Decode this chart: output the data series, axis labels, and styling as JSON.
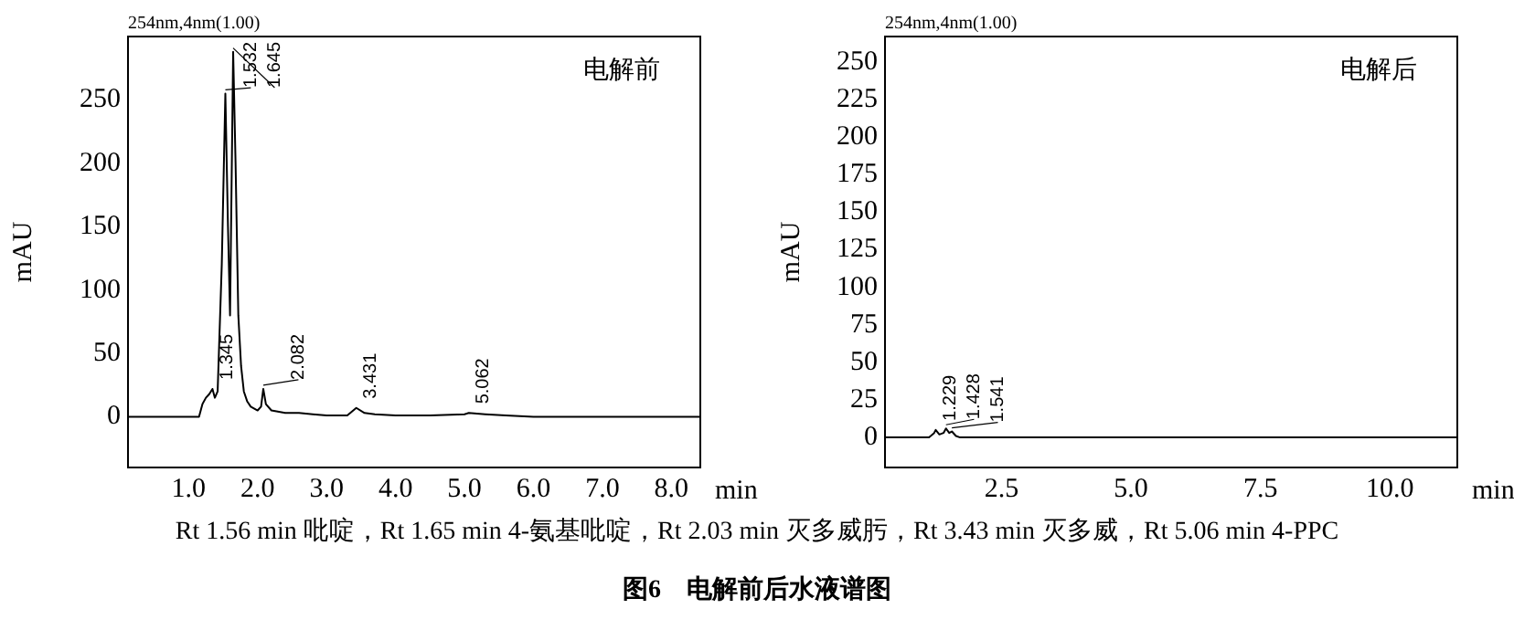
{
  "chart_data": [
    {
      "type": "line",
      "title": "电解前",
      "subtitle": "254nm,4nm(1.00)",
      "xlabel": "min",
      "ylabel": "mAU",
      "xlim": [
        0.12,
        8.42
      ],
      "ylim": [
        -40,
        300
      ],
      "xticks": [
        {
          "value": 1,
          "label": "1.0"
        },
        {
          "value": 2,
          "label": "2.0"
        },
        {
          "value": 3,
          "label": "3.0"
        },
        {
          "value": 4,
          "label": "4.0"
        },
        {
          "value": 5,
          "label": "5.0"
        },
        {
          "value": 6,
          "label": "6.0"
        },
        {
          "value": 7,
          "label": "7.0"
        },
        {
          "value": 8,
          "label": "8.0"
        }
      ],
      "yticks": [
        0,
        50,
        100,
        150,
        200,
        250
      ],
      "series": [
        {
          "color": "#000000",
          "x": [
            0.12,
            1.0,
            1.15,
            1.2,
            1.25,
            1.3,
            1.345,
            1.38,
            1.42,
            1.48,
            1.532,
            1.57,
            1.6,
            1.645,
            1.68,
            1.72,
            1.76,
            1.8,
            1.85,
            1.9,
            2.0,
            2.05,
            2.082,
            2.12,
            2.2,
            2.4,
            2.6,
            2.8,
            3.0,
            3.3,
            3.431,
            3.55,
            3.7,
            4.0,
            4.5,
            5.0,
            5.062,
            5.3,
            5.6,
            6.0,
            8.42
          ],
          "values": [
            0,
            0,
            0,
            10,
            15,
            18,
            22,
            15,
            20,
            120,
            255,
            150,
            80,
            288,
            200,
            80,
            40,
            20,
            12,
            8,
            5,
            8,
            22,
            10,
            5,
            3,
            3,
            2,
            1,
            1,
            7,
            3,
            2,
            1,
            1,
            2,
            3,
            2,
            1,
            0,
            0
          ]
        }
      ],
      "annotations": [
        {
          "text": "1.345",
          "x": 1.345,
          "y": 22
        },
        {
          "text": "1.532",
          "x": 1.532,
          "y": 255
        },
        {
          "text": "1.645",
          "x": 1.645,
          "y": 288
        },
        {
          "text": "2.082",
          "x": 2.082,
          "y": 22
        },
        {
          "text": "3.431",
          "x": 3.431,
          "y": 7
        },
        {
          "text": "5.062",
          "x": 5.062,
          "y": 3
        },
        "Rt 1.56 min 吡啶，Rt 1.65 min 4-氨基吡啶，Rt 2.03 min 灭多威肟，Rt 3.43 min 灭多威，Rt 5.06 min 4-PPC",
        "图6　电解前后水液谱图"
      ]
    },
    {
      "type": "line",
      "title": "电解后",
      "subtitle": "254nm,4nm(1.00)",
      "xlabel": "min",
      "ylabel": "mAU",
      "xlim": [
        0.25,
        11.3
      ],
      "ylim": [
        -20,
        267
      ],
      "xticks": [
        2.5,
        {
          "value": 5,
          "label": "5.0"
        },
        7.5,
        {
          "value": 10,
          "label": "10.0"
        }
      ],
      "yticks": [
        0,
        25,
        50,
        75,
        100,
        125,
        150,
        175,
        200,
        225,
        250
      ],
      "series": [
        {
          "color": "#000000",
          "x": [
            0.25,
            1.1,
            1.2,
            1.229,
            1.3,
            1.38,
            1.428,
            1.49,
            1.541,
            1.62,
            1.7,
            11.3
          ],
          "values": [
            0,
            0,
            3,
            5,
            2,
            3,
            6,
            3,
            4,
            1,
            0,
            0
          ]
        }
      ],
      "annotations": [
        {
          "text": "1.229",
          "x": 1.229,
          "y": 5
        },
        {
          "text": "1.428",
          "x": 1.428,
          "y": 6
        },
        {
          "text": "1.541",
          "x": 1.541,
          "y": 4
        }
      ]
    }
  ]
}
